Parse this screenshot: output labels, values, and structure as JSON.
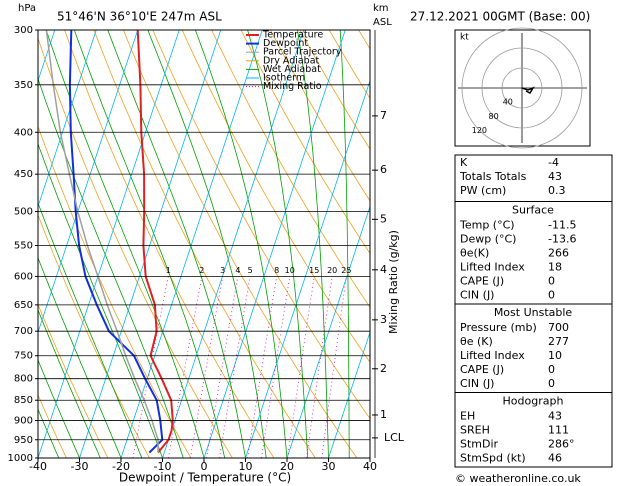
{
  "header": {
    "hpa": "hPa",
    "location": "51°46'N 36°10'E 247m ASL",
    "km": "km",
    "asl": "ASL",
    "datetime": "27.12.2021 00GMT (Base: 00)"
  },
  "chart_data": {
    "type": "skewt",
    "x_label": "Dewpoint / Temperature (°C)",
    "y2_label": "Mixing Ratio (g/kg)",
    "xlim": [
      -40,
      40
    ],
    "xticks": [
      -40,
      -30,
      -20,
      -10,
      0,
      10,
      20,
      30,
      40
    ],
    "ylim": [
      1000,
      300
    ],
    "yticks": [
      300,
      350,
      400,
      450,
      500,
      550,
      600,
      650,
      700,
      750,
      800,
      850,
      900,
      950,
      1000
    ],
    "log_scale": true,
    "grid": true,
    "series": [
      {
        "name": "Temperature",
        "color": "#e02020",
        "pressure": [
          985,
          950,
          925,
          900,
          850,
          800,
          750,
          700,
          650,
          600,
          550,
          500,
          450,
          400,
          350,
          300
        ],
        "values": [
          -11.5,
          -10,
          -10,
          -10.5,
          -12.5,
          -16.5,
          -21,
          -21.5,
          -24,
          -28.5,
          -31.5,
          -34,
          -37,
          -41,
          -45,
          -50
        ]
      },
      {
        "name": "Dewpoint",
        "color": "#1030e0",
        "pressure": [
          985,
          950,
          925,
          900,
          850,
          800,
          750,
          700,
          650,
          600,
          550,
          500,
          450,
          400,
          350,
          300
        ],
        "values": [
          -13.6,
          -11.5,
          -12.5,
          -13.5,
          -16,
          -20.5,
          -25,
          -33,
          -38,
          -43,
          -47,
          -50.5,
          -54,
          -58,
          -62,
          -66
        ]
      },
      {
        "name": "Parcel Trajectory",
        "color": "#a0a0a0",
        "pressure": [
          985,
          950,
          925,
          900,
          850,
          800,
          750,
          700,
          650,
          600,
          550,
          500,
          450,
          400,
          350,
          300
        ],
        "values": [
          -11.5,
          -12.5,
          -14,
          -15.5,
          -19,
          -23,
          -27,
          -31,
          -35.5,
          -40,
          -45,
          -50,
          -55,
          -60.5,
          -66,
          -72
        ]
      }
    ],
    "background_lines": [
      {
        "name": "Dry Adiabat",
        "color": "#f0a020"
      },
      {
        "name": "Wet Adiabat",
        "color": "#00a000"
      },
      {
        "name": "Isotherm",
        "color": "#00b8f0"
      },
      {
        "name": "Mixing Ratio",
        "color": "#e000c0",
        "dash": true
      }
    ],
    "mixing_ratios": [
      1,
      2,
      3,
      4,
      5,
      8,
      10,
      15,
      20,
      25
    ],
    "height_ticks": [
      {
        "km": 1,
        "pressure": 886
      },
      {
        "km": 2,
        "pressure": 778
      },
      {
        "km": 3,
        "pressure": 678
      },
      {
        "km": 4,
        "pressure": 589
      },
      {
        "km": 5,
        "pressure": 511
      },
      {
        "km": 6,
        "pressure": 445
      },
      {
        "km": 7,
        "pressure": 382
      }
    ],
    "lcl": {
      "label": "LCL",
      "pressure": 945
    }
  },
  "hodograph": {
    "unit": "kt",
    "rings": [
      40,
      80,
      120
    ]
  },
  "indices": [
    {
      "rows": [
        [
          "K",
          "-4"
        ],
        [
          "Totals Totals",
          "43"
        ],
        [
          "PW (cm)",
          "0.3"
        ]
      ]
    },
    {
      "title": "Surface",
      "rows": [
        [
          "Temp (°C)",
          "-11.5"
        ],
        [
          "Dewp (°C)",
          "-13.6"
        ],
        [
          "θe(K)",
          "266"
        ],
        [
          "Lifted Index",
          "18"
        ],
        [
          "CAPE (J)",
          "0"
        ],
        [
          "CIN (J)",
          "0"
        ]
      ]
    },
    {
      "title": "Most Unstable",
      "rows": [
        [
          "Pressure (mb)",
          "700"
        ],
        [
          "θe (K)",
          "277"
        ],
        [
          "Lifted Index",
          "10"
        ],
        [
          "CAPE (J)",
          "0"
        ],
        [
          "CIN (J)",
          "0"
        ]
      ]
    },
    {
      "title": "Hodograph",
      "rows": [
        [
          "EH",
          "43"
        ],
        [
          "SREH",
          "111"
        ],
        [
          "StmDir",
          "286°"
        ],
        [
          "StmSpd (kt)",
          "46"
        ]
      ]
    }
  ],
  "footer": "© weatheronline.co.uk"
}
